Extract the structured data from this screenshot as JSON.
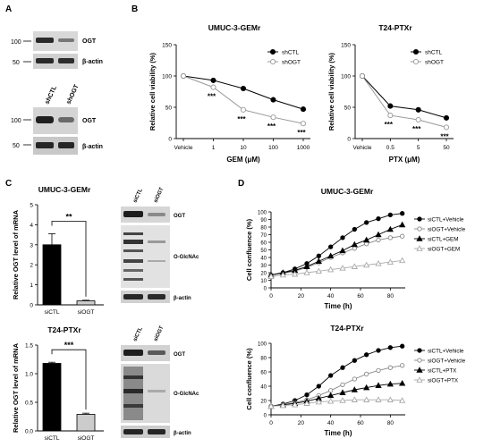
{
  "panels": {
    "A": {
      "letter": "A",
      "blot1": {
        "markers": [
          "100",
          "50"
        ],
        "bands": [
          "OGT",
          "β-actin"
        ]
      },
      "blot2": {
        "lanes": [
          "shCTL",
          "shOGT"
        ],
        "markers": [
          "100",
          "50"
        ],
        "bands": [
          "OGT",
          "β-actin"
        ]
      }
    },
    "B": {
      "letter": "B"
    },
    "C": {
      "letter": "C",
      "blot_top": {
        "lanes": [
          "siCTL",
          "siOGT"
        ],
        "bands": [
          "OGT",
          "O-GlcNAc",
          "β-actin"
        ]
      },
      "blot_bottom": {
        "lanes": [
          "siCTL",
          "siOGT"
        ],
        "bands": [
          "OGT",
          "O-GlcNAc",
          "β-actin"
        ]
      }
    },
    "D": {
      "letter": "D"
    }
  },
  "chart_data": [
    {
      "id": "B1",
      "type": "line",
      "title": "UMUC-3-GEMr",
      "xlabel": "GEM (μM)",
      "ylabel": "Relative cell viability (%)",
      "categories": [
        "Vehicle",
        "1",
        "10",
        "100",
        "1000"
      ],
      "ylim": [
        0,
        150
      ],
      "yticks": [
        0,
        50,
        100,
        150
      ],
      "legend": "top-right",
      "series": [
        {
          "name": "shCTL",
          "marker": "filled-circle",
          "color": "#000000",
          "values": [
            100,
            93,
            80,
            62,
            47
          ],
          "errors": [
            0,
            2,
            2,
            2,
            2
          ]
        },
        {
          "name": "shOGT",
          "marker": "open-circle",
          "color": "#999999",
          "values": [
            100,
            82,
            46,
            34,
            24
          ],
          "errors": [
            0,
            2,
            3,
            2,
            2
          ]
        }
      ],
      "annotations": [
        {
          "x": "1",
          "text": "***"
        },
        {
          "x": "10",
          "text": "***"
        },
        {
          "x": "100",
          "text": "***"
        },
        {
          "x": "1000",
          "text": "***"
        }
      ]
    },
    {
      "id": "B2",
      "type": "line",
      "title": "T24-PTXr",
      "xlabel": "PTX (μM)",
      "ylabel": "Relative cell viability (%)",
      "categories": [
        "Vehicle",
        "0.5",
        "5",
        "50"
      ],
      "ylim": [
        0,
        150
      ],
      "yticks": [
        0,
        50,
        100,
        150
      ],
      "legend": "top-right",
      "series": [
        {
          "name": "shCTL",
          "marker": "filled-circle",
          "color": "#000000",
          "values": [
            100,
            52,
            46,
            33
          ],
          "errors": [
            0,
            2,
            2,
            2
          ]
        },
        {
          "name": "shOGT",
          "marker": "open-circle",
          "color": "#999999",
          "values": [
            100,
            37,
            30,
            18
          ],
          "errors": [
            0,
            2,
            4,
            2
          ]
        }
      ],
      "annotations": [
        {
          "x": "0.5",
          "text": "***"
        },
        {
          "x": "5",
          "text": "***"
        },
        {
          "x": "50",
          "text": "***"
        }
      ]
    },
    {
      "id": "C1",
      "type": "bar",
      "title": "UMUC-3-GEMr",
      "ylabel": "Relative OGT level of mRNA",
      "categories": [
        "siCTL",
        "siOGT"
      ],
      "values": [
        3.0,
        0.2
      ],
      "errors": [
        0.55,
        0.03
      ],
      "colors": [
        "#000000",
        "#cccccc"
      ],
      "ylim": [
        0,
        5
      ],
      "yticks": [
        0,
        1,
        2,
        3,
        4,
        5
      ],
      "significance": "**"
    },
    {
      "id": "C2",
      "type": "bar",
      "title": "T24-PTXr",
      "ylabel": "Relative OGT level of mRNA",
      "categories": [
        "siCTL",
        "siOGT"
      ],
      "values": [
        1.18,
        0.29
      ],
      "errors": [
        0.02,
        0.02
      ],
      "colors": [
        "#000000",
        "#cccccc"
      ],
      "ylim": [
        0,
        1.5
      ],
      "yticks": [
        "0.0",
        "0.5",
        "1.0",
        "1.5"
      ],
      "significance": "***"
    },
    {
      "id": "D1",
      "type": "line",
      "title": "UMUC-3-GEMr",
      "xlabel": "Time (h)",
      "ylabel": "Cell confluence (%)",
      "x": [
        0,
        8,
        16,
        24,
        32,
        40,
        48,
        56,
        64,
        72,
        80,
        88
      ],
      "xlim": [
        0,
        90
      ],
      "xticks": [
        0,
        20,
        40,
        60,
        80
      ],
      "ylim": [
        0,
        100
      ],
      "yticks": [
        0,
        10,
        20,
        30,
        40,
        50,
        60,
        70,
        80,
        90,
        100
      ],
      "legend": "right",
      "series": [
        {
          "name": "siCTL+Vehicle",
          "marker": "filled-circle",
          "color": "#000000",
          "values": [
            17,
            20,
            25,
            32,
            42,
            54,
            66,
            77,
            86,
            91,
            96,
            98
          ]
        },
        {
          "name": "siOGT+Vehicle",
          "marker": "open-circle",
          "color": "#888888",
          "values": [
            17,
            19,
            22,
            27,
            33,
            40,
            46,
            52,
            58,
            63,
            66,
            68
          ]
        },
        {
          "name": "siCTL+GEM",
          "marker": "filled-triangle",
          "color": "#000000",
          "values": [
            17,
            20,
            23,
            28,
            35,
            42,
            49,
            57,
            63,
            70,
            77,
            83
          ]
        },
        {
          "name": "siOGT+GEM",
          "marker": "open-triangle",
          "color": "#aaaaaa",
          "values": [
            15,
            17,
            18,
            20,
            22,
            24,
            26,
            28,
            30,
            32,
            34,
            36
          ]
        }
      ]
    },
    {
      "id": "D2",
      "type": "line",
      "title": "T24-PTXr",
      "xlabel": "Time (h)",
      "ylabel": "Cell confluence (%)",
      "x": [
        0,
        8,
        16,
        24,
        32,
        40,
        48,
        56,
        64,
        72,
        80,
        88
      ],
      "xlim": [
        0,
        90
      ],
      "xticks": [
        0,
        20,
        40,
        60,
        80
      ],
      "ylim": [
        0,
        100
      ],
      "yticks": [
        0,
        20,
        40,
        60,
        80,
        100
      ],
      "legend": "right",
      "series": [
        {
          "name": "siCTL+Vehicle",
          "marker": "filled-circle",
          "color": "#000000",
          "values": [
            12,
            15,
            20,
            28,
            40,
            55,
            66,
            76,
            84,
            90,
            94,
            96
          ]
        },
        {
          "name": "siOGT+Vehicle",
          "marker": "open-circle",
          "color": "#888888",
          "values": [
            12,
            14,
            17,
            21,
            27,
            34,
            42,
            50,
            57,
            62,
            66,
            69
          ]
        },
        {
          "name": "siCTL+PTX",
          "marker": "filled-triangle",
          "color": "#000000",
          "values": [
            12,
            14,
            16,
            19,
            23,
            27,
            31,
            35,
            38,
            41,
            43,
            44
          ]
        },
        {
          "name": "siOGT+PTX",
          "marker": "open-triangle",
          "color": "#aaaaaa",
          "values": [
            12,
            13,
            14,
            16,
            18,
            19,
            20,
            21,
            21,
            21,
            21,
            20
          ]
        }
      ]
    }
  ]
}
